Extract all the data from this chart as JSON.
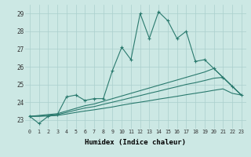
{
  "xlabel": "Humidex (Indice chaleur)",
  "x": [
    0,
    1,
    2,
    3,
    4,
    5,
    6,
    7,
    8,
    9,
    10,
    11,
    12,
    13,
    14,
    15,
    16,
    17,
    18,
    19,
    20,
    21,
    22,
    23
  ],
  "line1": [
    23.2,
    22.8,
    23.2,
    23.3,
    24.3,
    24.4,
    24.1,
    24.2,
    24.2,
    25.8,
    27.1,
    26.4,
    29.0,
    27.6,
    29.1,
    28.6,
    27.6,
    28.0,
    26.3,
    26.4,
    25.9,
    25.4,
    24.9,
    24.4
  ],
  "line2": [
    23.2,
    23.25,
    23.3,
    23.35,
    23.5,
    23.65,
    23.8,
    23.9,
    24.05,
    24.2,
    24.35,
    24.5,
    24.65,
    24.8,
    24.95,
    25.1,
    25.25,
    25.4,
    25.55,
    25.7,
    25.9,
    25.4,
    24.9,
    24.4
  ],
  "line3": [
    23.2,
    23.22,
    23.26,
    23.3,
    23.42,
    23.55,
    23.67,
    23.75,
    23.88,
    24.0,
    24.12,
    24.25,
    24.37,
    24.5,
    24.62,
    24.75,
    24.87,
    25.0,
    25.1,
    25.22,
    25.35,
    25.4,
    24.9,
    24.4
  ],
  "line4": [
    23.2,
    23.2,
    23.22,
    23.25,
    23.33,
    23.42,
    23.5,
    23.57,
    23.65,
    23.73,
    23.83,
    23.92,
    24.0,
    24.08,
    24.17,
    24.25,
    24.33,
    24.42,
    24.5,
    24.58,
    24.67,
    24.75,
    24.5,
    24.4
  ],
  "color": "#2a7a6e",
  "bg_color": "#cce8e4",
  "grid_color": "#aacfcc",
  "ylim": [
    22.5,
    29.5
  ],
  "yticks": [
    23,
    24,
    25,
    26,
    27,
    28,
    29
  ],
  "xlim": [
    -0.5,
    23.5
  ]
}
